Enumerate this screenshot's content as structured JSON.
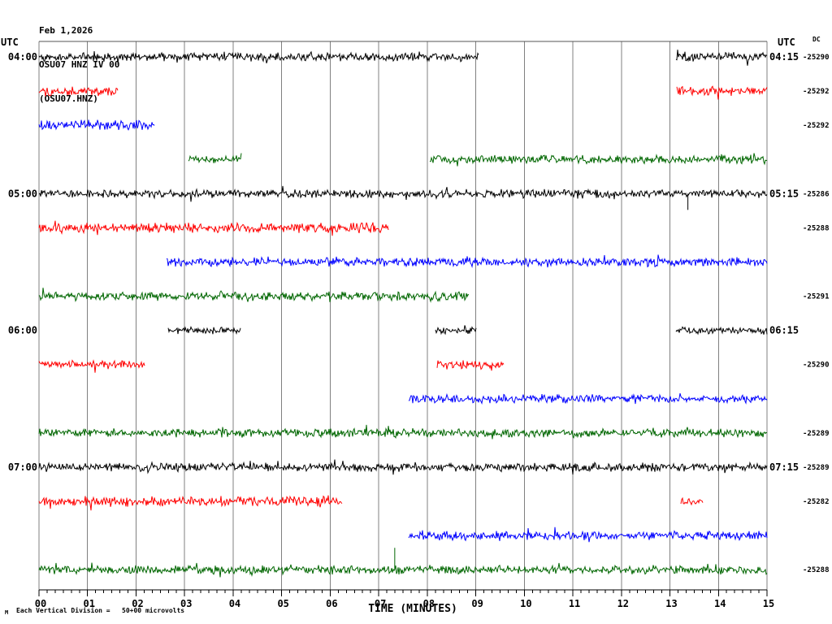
{
  "title": {
    "date": "Feb 1,2026",
    "station": "OSU07 HNZ IV 00",
    "channel": "(OSU07.HNZ)"
  },
  "axes": {
    "left_header": "UTC",
    "right_header": "UTC",
    "dc_header": "DC",
    "xlabel": "TIME (MINUTES)",
    "x_ticks": [
      "00",
      "01",
      "02",
      "03",
      "04",
      "05",
      "06",
      "07",
      "08",
      "09",
      "10",
      "11",
      "12",
      "13",
      "14",
      "15"
    ],
    "footnote": "Each Vertical Division =   50+00 microvolts",
    "corner_mark": "M"
  },
  "chart_data": {
    "type": "line",
    "subtype": "helicorder-seismogram",
    "x_range_minutes": [
      0,
      15
    ],
    "minutes_per_row": 15,
    "minor_ticks_per_minute": 6,
    "grid": true,
    "colors": {
      "black": "#000000",
      "red": "#ff0000",
      "blue": "#0000ff",
      "green": "#006600",
      "grid": "#808080",
      "axis": "#000000",
      "border": "#555555"
    },
    "rows": [
      {
        "color": "black",
        "left_label": "04:00",
        "right_label": "04:15",
        "dc_label": "-25290",
        "segments": [
          [
            0,
            9.05,
            6
          ],
          [
            13.12,
            15,
            6
          ]
        ],
        "spikes": []
      },
      {
        "color": "red",
        "left_label": "",
        "right_label": "",
        "dc_label": "-25292",
        "segments": [
          [
            0,
            1.63,
            7
          ],
          [
            13.15,
            15,
            7
          ]
        ],
        "spikes": []
      },
      {
        "color": "blue",
        "left_label": "",
        "right_label": "",
        "dc_label": "-25292",
        "segments": [
          [
            0,
            2.37,
            7
          ]
        ],
        "spikes": []
      },
      {
        "color": "green",
        "left_label": "",
        "right_label": "",
        "dc_label": "",
        "segments": [
          [
            3.08,
            4.17,
            5
          ],
          [
            8.05,
            15,
            6
          ]
        ],
        "spikes": []
      },
      {
        "color": "black",
        "left_label": "05:00",
        "right_label": "05:15",
        "dc_label": "-25286",
        "segments": [
          [
            0,
            15,
            6
          ]
        ],
        "spikes": [
          {
            "minute": 13.37,
            "dy": 20
          }
        ]
      },
      {
        "color": "red",
        "left_label": "",
        "right_label": "",
        "dc_label": "-25288",
        "segments": [
          [
            0,
            7.2,
            7
          ]
        ],
        "spikes": []
      },
      {
        "color": "blue",
        "left_label": "",
        "right_label": "",
        "dc_label": "",
        "segments": [
          [
            2.63,
            15,
            6
          ]
        ],
        "spikes": []
      },
      {
        "color": "green",
        "left_label": "",
        "right_label": "",
        "dc_label": "-25291",
        "segments": [
          [
            0,
            8.85,
            6
          ]
        ],
        "spikes": []
      },
      {
        "color": "black",
        "left_label": "06:00",
        "right_label": "06:15",
        "dc_label": "",
        "segments": [
          [
            2.67,
            4.15,
            5
          ],
          [
            8.17,
            9.0,
            5
          ],
          [
            13.12,
            15,
            5
          ]
        ],
        "spikes": []
      },
      {
        "color": "red",
        "left_label": "",
        "right_label": "",
        "dc_label": "-25290",
        "segments": [
          [
            0,
            2.17,
            6
          ],
          [
            8.2,
            9.57,
            6
          ]
        ],
        "spikes": []
      },
      {
        "color": "blue",
        "left_label": "",
        "right_label": "",
        "dc_label": "",
        "segments": [
          [
            7.62,
            15,
            6
          ]
        ],
        "spikes": []
      },
      {
        "color": "green",
        "left_label": "",
        "right_label": "",
        "dc_label": "-25289",
        "segments": [
          [
            0,
            15,
            6
          ]
        ],
        "spikes": []
      },
      {
        "color": "black",
        "left_label": "07:00",
        "right_label": "07:15",
        "dc_label": "-25289",
        "segments": [
          [
            0,
            15,
            6
          ]
        ],
        "spikes": []
      },
      {
        "color": "red",
        "left_label": "",
        "right_label": "",
        "dc_label": "-25282",
        "segments": [
          [
            0,
            6.25,
            7
          ],
          [
            13.22,
            13.68,
            5
          ]
        ],
        "spikes": []
      },
      {
        "color": "blue",
        "left_label": "",
        "right_label": "",
        "dc_label": "",
        "segments": [
          [
            7.62,
            15,
            6
          ]
        ],
        "spikes": []
      },
      {
        "color": "green",
        "left_label": "",
        "right_label": "",
        "dc_label": "-25288",
        "segments": [
          [
            0,
            15,
            6
          ]
        ],
        "spikes": [
          {
            "minute": 7.33,
            "dy": -27
          }
        ]
      }
    ]
  }
}
